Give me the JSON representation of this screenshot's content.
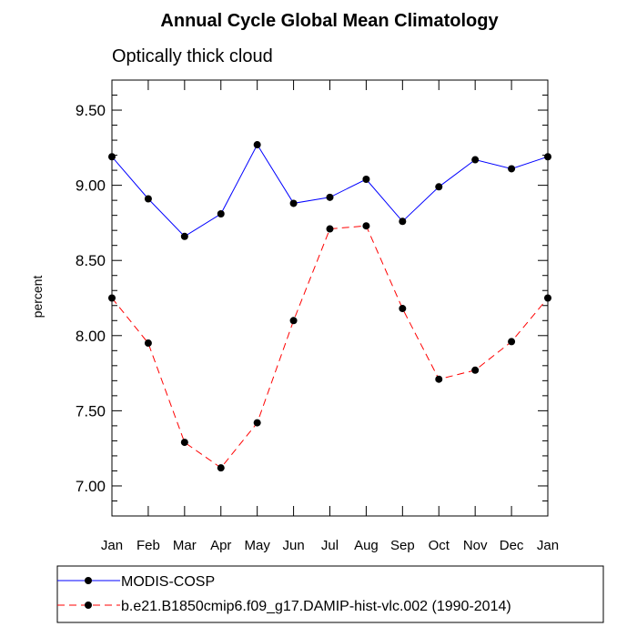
{
  "chart_data": {
    "type": "line",
    "title": "Annual Cycle Global Mean Climatology",
    "subtitle": "Optically thick cloud",
    "xlabel": "",
    "ylabel": "percent",
    "categories": [
      "Jan",
      "Feb",
      "Mar",
      "Apr",
      "May",
      "Jun",
      "Jul",
      "Aug",
      "Sep",
      "Oct",
      "Nov",
      "Dec",
      "Jan"
    ],
    "ylim": [
      6.8,
      9.7
    ],
    "yticks": [
      "7.00",
      "7.50",
      "8.00",
      "8.50",
      "9.00",
      "9.50"
    ],
    "grid": false,
    "legend_position": "bottom",
    "series": [
      {
        "name": "MODIS-COSP",
        "color": "#0000ff",
        "line_style": "solid",
        "values": [
          9.19,
          8.91,
          8.66,
          8.81,
          9.27,
          8.88,
          8.92,
          9.04,
          8.76,
          8.99,
          9.17,
          9.11,
          9.19
        ]
      },
      {
        "name": "b.e21.B1850cmip6.f09_g17.DAMIP-hist-vlc.002 (1990-2014)",
        "color": "#ff0000",
        "line_style": "dashed",
        "values": [
          8.25,
          7.95,
          7.29,
          7.12,
          7.42,
          8.1,
          8.71,
          8.73,
          8.18,
          7.71,
          7.77,
          7.96,
          8.25
        ]
      }
    ]
  }
}
